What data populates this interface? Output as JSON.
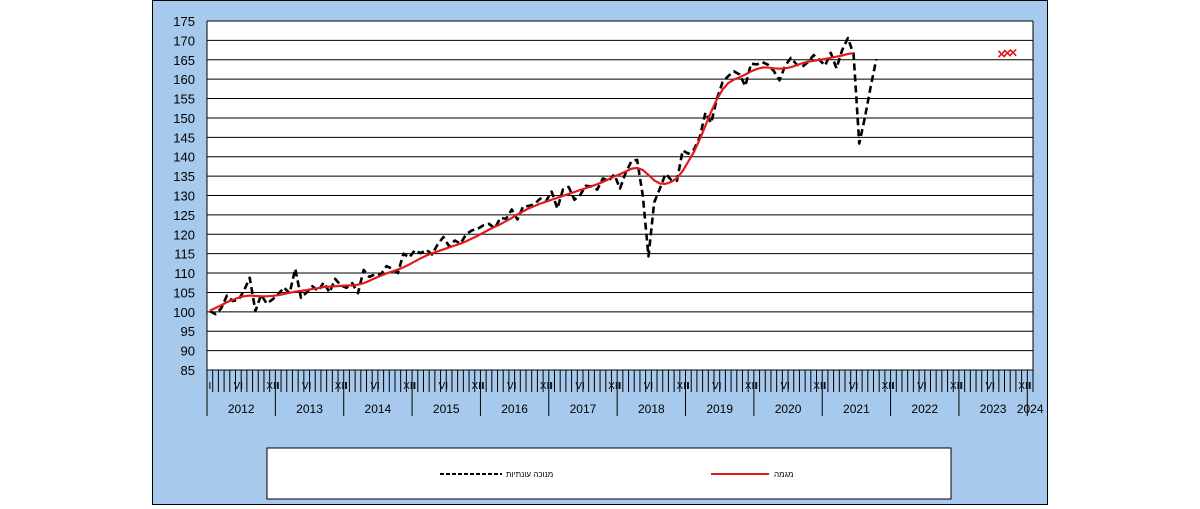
{
  "chart_data": {
    "type": "line",
    "title": "",
    "xlabel": "",
    "ylabel": "",
    "ylim": [
      85,
      175
    ],
    "yticks": [
      85,
      90,
      95,
      100,
      105,
      110,
      115,
      120,
      125,
      130,
      135,
      140,
      145,
      150,
      155,
      160,
      165,
      170,
      175
    ],
    "grid": "horizontal",
    "month_tick_labels": [
      "I",
      "VI",
      "XII"
    ],
    "years": [
      "2012",
      "2013",
      "2014",
      "2015",
      "2016",
      "2017",
      "2018",
      "2019",
      "2020",
      "2021",
      "2022",
      "2023",
      "2024"
    ],
    "x_start": "2012-01",
    "legend_position": "bottom",
    "colors": {
      "figure_bg": "#a6c9ec",
      "plot_bg": "#ffffff",
      "seasonal": "#000000",
      "trend": "#e31a1c"
    },
    "series": [
      {
        "name": "מנוכה עונתיות",
        "style": "dashed",
        "values": [
          100.2,
          99.4,
          100.9,
          104.2,
          102.8,
          103.0,
          105.5,
          108.8,
          100.2,
          104.4,
          102.1,
          103.2,
          104.5,
          106.3,
          104.8,
          111.1,
          103.6,
          105.0,
          106.6,
          105.4,
          107.6,
          105.0,
          108.5,
          106.8,
          106.2,
          107.4,
          104.8,
          110.8,
          109.0,
          109.7,
          109.6,
          111.8,
          111.1,
          110.0,
          115.0,
          114.0,
          115.9,
          115.1,
          116.0,
          114.8,
          117.4,
          119.3,
          116.9,
          118.4,
          117.6,
          120.0,
          121.0,
          121.4,
          122.3,
          122.7,
          121.5,
          124.2,
          124.0,
          126.4,
          123.8,
          127.2,
          127.3,
          127.8,
          129.2,
          128.5,
          131.0,
          126.6,
          131.6,
          132.2,
          128.9,
          130.1,
          132.5,
          132.3,
          131.5,
          134.4,
          133.8,
          135.4,
          131.8,
          135.9,
          138.8,
          139.2,
          130.0,
          114.3,
          128.2,
          131.8,
          135.6,
          134.0,
          133.8,
          141.6,
          140.8,
          141.9,
          145.0,
          151.4,
          148.7,
          154.9,
          159.2,
          160.8,
          162.0,
          161.2,
          158.2,
          164.0,
          163.8,
          164.4,
          163.7,
          162.1,
          159.7,
          163.5,
          165.5,
          163.8,
          163.2,
          164.4,
          166.2,
          165.0,
          163.5,
          166.8,
          162.8,
          167.5,
          170.6,
          166.5,
          143.4,
          150.2,
          158.0,
          165.2
        ]
      },
      {
        "name": "מגמה",
        "style": "solid",
        "values": [
          100.3,
          101.0,
          101.7,
          102.5,
          103.1,
          103.6,
          104.0,
          104.2,
          104.1,
          104.0,
          104.0,
          104.1,
          104.3,
          104.6,
          104.9,
          105.2,
          105.4,
          105.6,
          105.9,
          106.1,
          106.4,
          106.5,
          106.6,
          106.7,
          106.8,
          106.8,
          107.0,
          107.4,
          108.0,
          108.7,
          109.3,
          109.9,
          110.4,
          110.9,
          111.5,
          112.2,
          113.0,
          113.8,
          114.5,
          115.1,
          115.6,
          116.1,
          116.6,
          117.1,
          117.6,
          118.2,
          118.9,
          119.6,
          120.4,
          121.2,
          121.9,
          122.6,
          123.4,
          124.2,
          125.1,
          125.9,
          126.7,
          127.3,
          127.9,
          128.4,
          128.9,
          129.4,
          129.9,
          130.4,
          130.9,
          131.4,
          131.9,
          132.4,
          132.9,
          133.5,
          134.2,
          134.9,
          135.5,
          136.2,
          136.9,
          137.1,
          136.6,
          135.3,
          133.9,
          133.1,
          133.0,
          133.5,
          134.5,
          136.3,
          138.8,
          141.3,
          144.5,
          148.0,
          151.6,
          154.8,
          157.3,
          159.0,
          159.9,
          160.5,
          161.2,
          162.0,
          162.6,
          163.0,
          163.0,
          162.8,
          162.7,
          162.8,
          163.1,
          163.6,
          164.1,
          164.5,
          164.7,
          165.0,
          165.2,
          165.5,
          165.8,
          166.1,
          166.5,
          166.7
        ]
      }
    ],
    "markers": {
      "color": "#e31a1c",
      "symbol": "×",
      "months": [
        139,
        140,
        141
      ],
      "values": [
        166.5,
        166.8,
        166.9
      ]
    }
  }
}
